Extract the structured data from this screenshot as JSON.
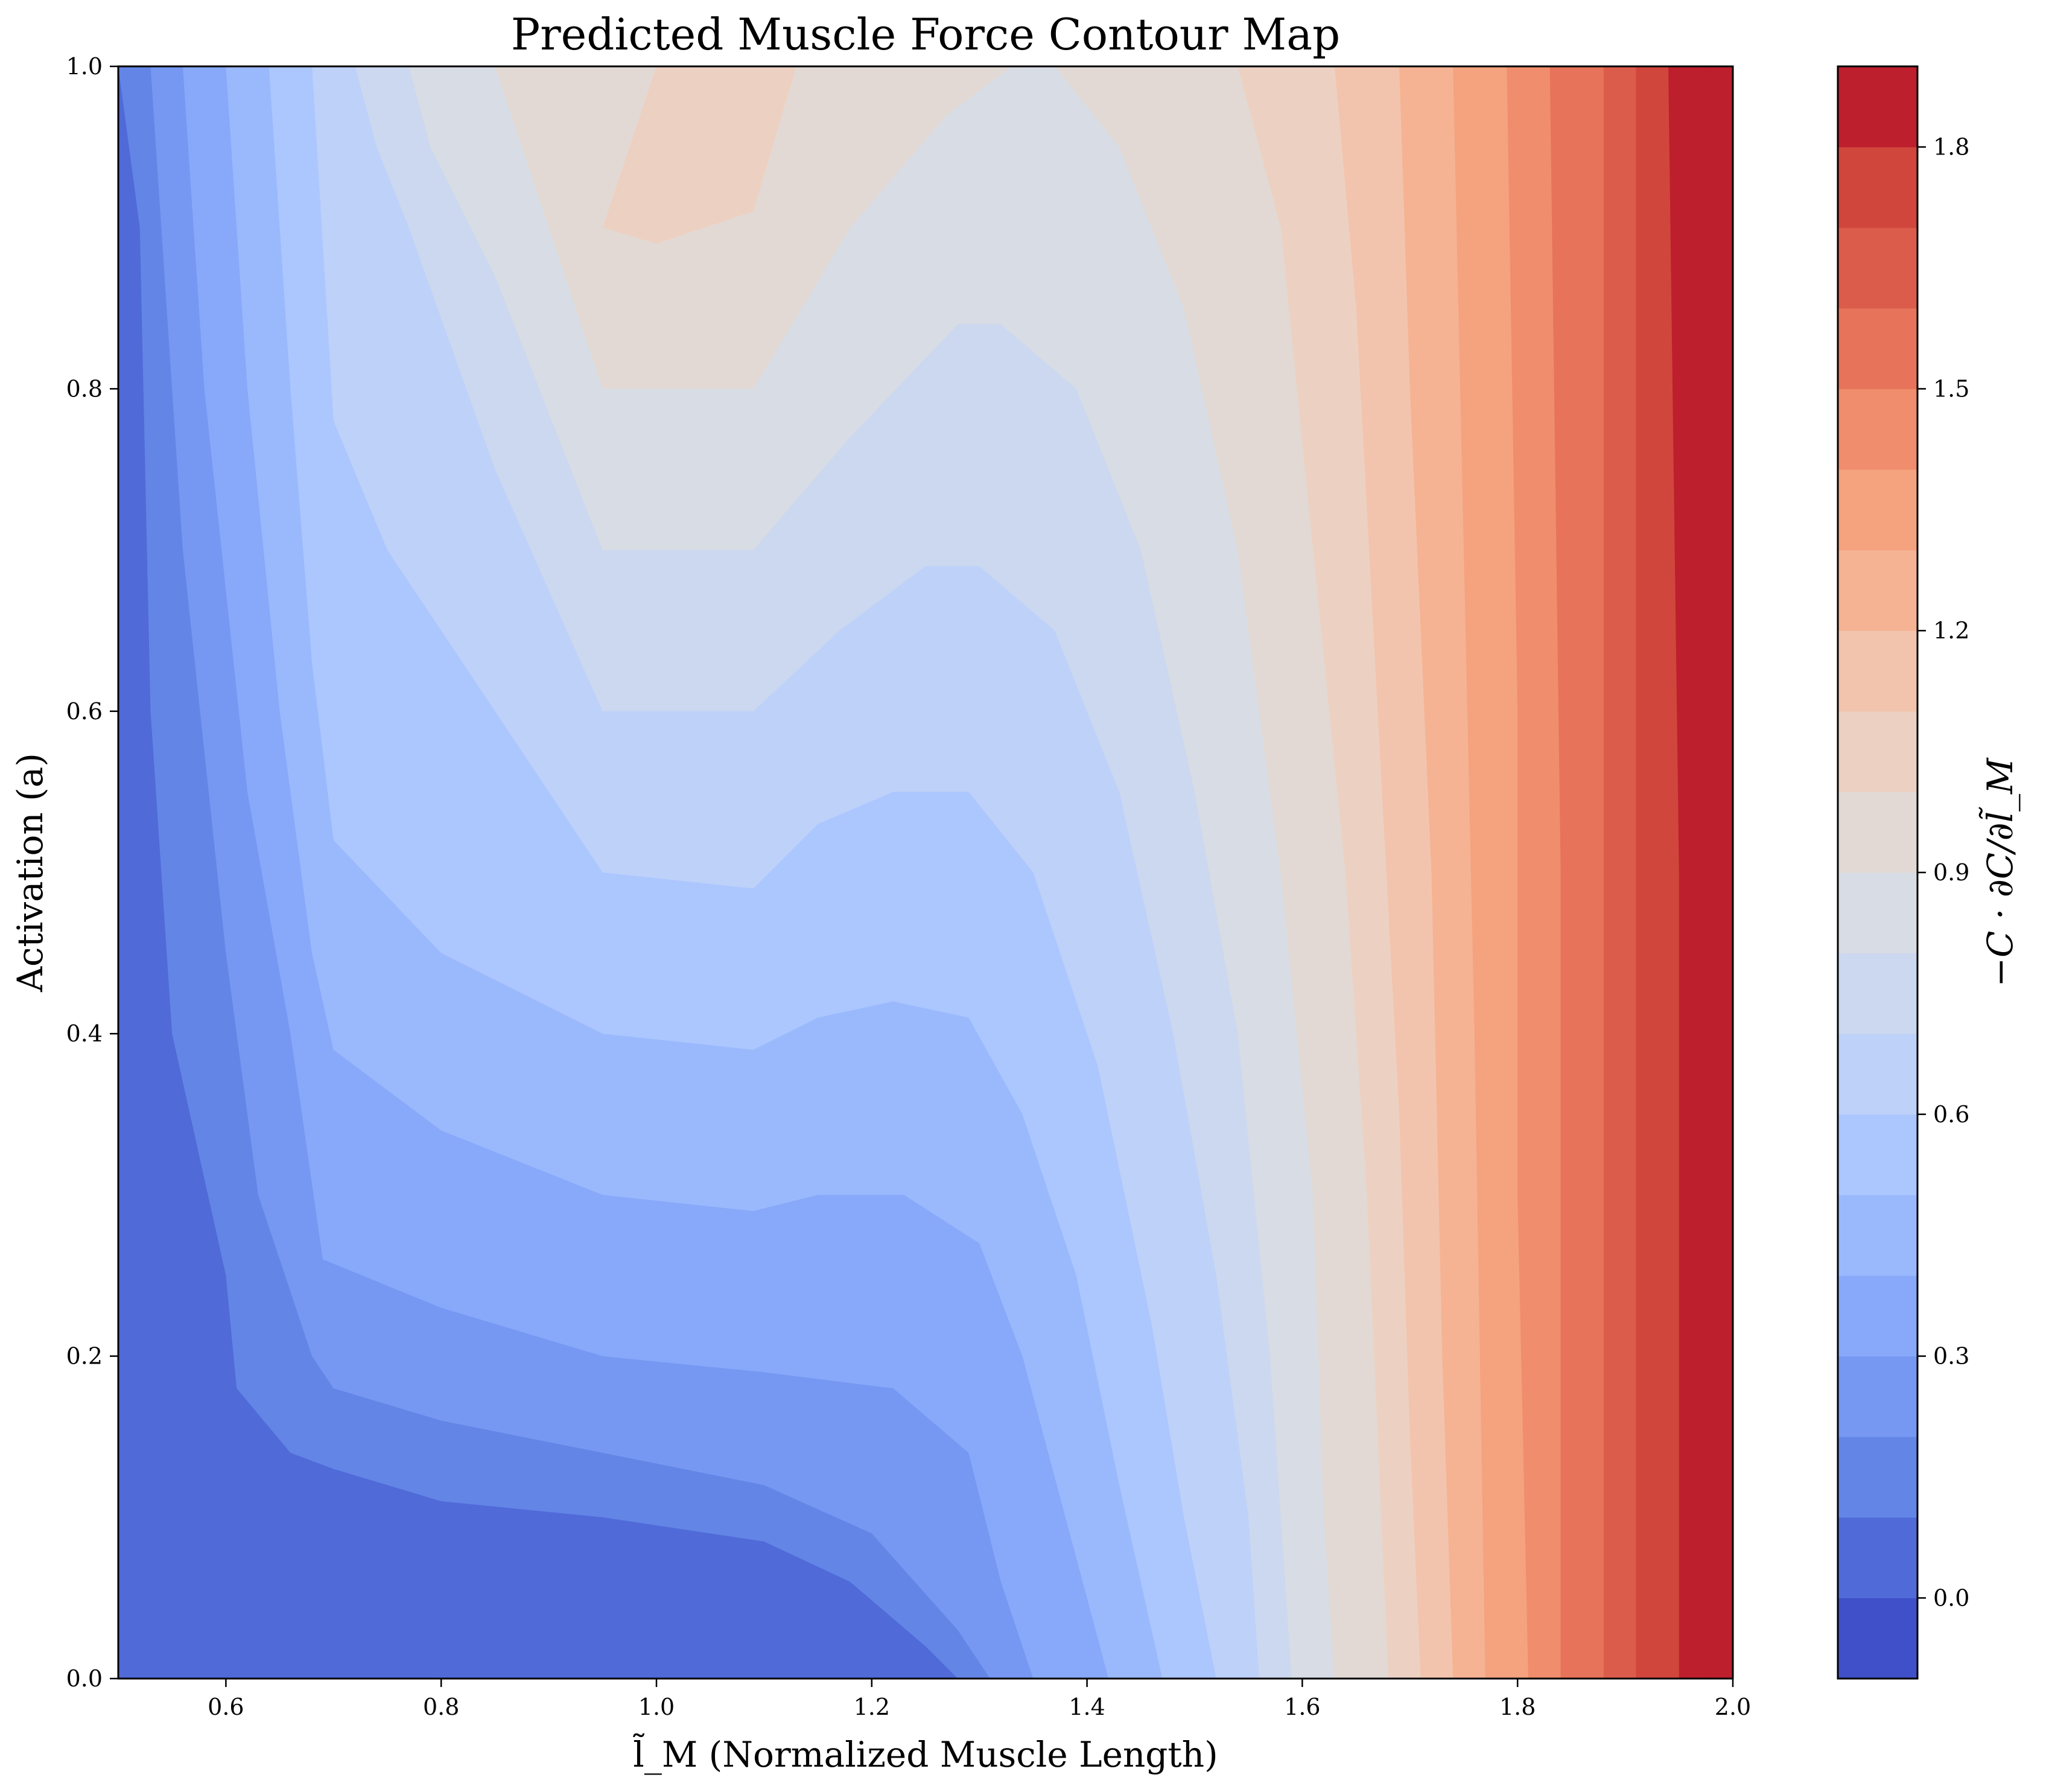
{
  "chart_data": {
    "type": "contour",
    "title": "Predicted Muscle Force Contour Map",
    "xlabel": "l̃_M (Normalized Muscle Length)",
    "ylabel": "Activation (a)",
    "xlim": [
      0.5,
      2.0
    ],
    "ylim": [
      0.0,
      1.0
    ],
    "x_ticks": [
      "0.6",
      "0.8",
      "1.0",
      "1.2",
      "1.4",
      "1.6",
      "1.8",
      "2.0"
    ],
    "y_ticks": [
      "0.0",
      "0.2",
      "0.4",
      "0.6",
      "0.8",
      "1.0"
    ],
    "grid": false,
    "colorbar": {
      "label": "−C · ∂C/∂l̃_M",
      "range": [
        -0.1,
        1.9
      ],
      "ticks": [
        "0.0",
        "0.3",
        "0.6",
        "0.9",
        "1.2",
        "1.5",
        "1.8"
      ],
      "levels": [
        -0.1,
        0.0,
        0.1,
        0.2,
        0.3,
        0.4,
        0.5,
        0.6,
        0.7,
        0.8,
        0.9,
        1.0,
        1.1,
        1.2,
        1.3,
        1.4,
        1.5,
        1.6,
        1.7,
        1.8,
        1.9
      ],
      "colors": [
        "#3f50c8",
        "#506ad8",
        "#6385e6",
        "#7698f2",
        "#88a9fa",
        "#9ab9fd",
        "#acc6fe",
        "#bdd1f9",
        "#cbd8ef",
        "#d8dce4",
        "#e2d9d4",
        "#ecd1c3",
        "#f3c4ad",
        "#f5b394",
        "#f5a27f",
        "#f08d6c",
        "#e6735a",
        "#dc5c4b",
        "#d0463c",
        "#bd1f2d"
      ]
    },
    "contour_lines": [
      {
        "level": 0.0,
        "points": [
          [
            0.5,
            0.003
          ],
          [
            0.55,
            0.003
          ],
          [
            0.6,
            0.0
          ]
        ]
      },
      {
        "level": 0.1,
        "points": [
          [
            0.5,
            1.0
          ],
          [
            0.52,
            0.9
          ],
          [
            0.53,
            0.6
          ],
          [
            0.55,
            0.4
          ],
          [
            0.6,
            0.25
          ],
          [
            0.61,
            0.18
          ],
          [
            0.66,
            0.14
          ],
          [
            0.7,
            0.13
          ],
          [
            0.8,
            0.11
          ],
          [
            0.95,
            0.1
          ],
          [
            1.1,
            0.085
          ],
          [
            1.18,
            0.06
          ],
          [
            1.25,
            0.02
          ],
          [
            1.28,
            0.0
          ]
        ]
      },
      {
        "level": 0.2,
        "points": [
          [
            0.53,
            1.0
          ],
          [
            0.54,
            0.9
          ],
          [
            0.56,
            0.7
          ],
          [
            0.6,
            0.45
          ],
          [
            0.63,
            0.3
          ],
          [
            0.68,
            0.2
          ],
          [
            0.7,
            0.18
          ],
          [
            0.8,
            0.16
          ],
          [
            0.95,
            0.14
          ],
          [
            1.1,
            0.12
          ],
          [
            1.2,
            0.09
          ],
          [
            1.28,
            0.03
          ],
          [
            1.31,
            0.0
          ]
        ]
      },
      {
        "level": 0.3,
        "points": [
          [
            0.56,
            1.0
          ],
          [
            0.58,
            0.8
          ],
          [
            0.62,
            0.55
          ],
          [
            0.66,
            0.4
          ],
          [
            0.69,
            0.26
          ],
          [
            0.8,
            0.23
          ],
          [
            0.95,
            0.2
          ],
          [
            1.1,
            0.19
          ],
          [
            1.22,
            0.18
          ],
          [
            1.29,
            0.14
          ],
          [
            1.32,
            0.06
          ],
          [
            1.35,
            0.0
          ]
        ]
      },
      {
        "level": 0.4,
        "points": [
          [
            0.6,
            1.0
          ],
          [
            0.62,
            0.8
          ],
          [
            0.65,
            0.6
          ],
          [
            0.68,
            0.45
          ],
          [
            0.7,
            0.39
          ],
          [
            0.8,
            0.34
          ],
          [
            0.95,
            0.3
          ],
          [
            1.09,
            0.29
          ],
          [
            1.15,
            0.3
          ],
          [
            1.23,
            0.3
          ],
          [
            1.3,
            0.27
          ],
          [
            1.34,
            0.2
          ],
          [
            1.38,
            0.1
          ],
          [
            1.42,
            0.0
          ]
        ]
      },
      {
        "level": 0.5,
        "points": [
          [
            0.64,
            1.0
          ],
          [
            0.66,
            0.8
          ],
          [
            0.68,
            0.63
          ],
          [
            0.7,
            0.52
          ],
          [
            0.8,
            0.45
          ],
          [
            0.95,
            0.4
          ],
          [
            1.09,
            0.39
          ],
          [
            1.15,
            0.41
          ],
          [
            1.22,
            0.42
          ],
          [
            1.29,
            0.41
          ],
          [
            1.34,
            0.35
          ],
          [
            1.39,
            0.25
          ],
          [
            1.43,
            0.12
          ],
          [
            1.47,
            0.0
          ]
        ]
      },
      {
        "level": 0.6,
        "points": [
          [
            0.68,
            1.0
          ],
          [
            0.7,
            0.78
          ],
          [
            0.75,
            0.7
          ],
          [
            0.85,
            0.6
          ],
          [
            0.95,
            0.5
          ],
          [
            1.09,
            0.49
          ],
          [
            1.15,
            0.53
          ],
          [
            1.22,
            0.55
          ],
          [
            1.29,
            0.55
          ],
          [
            1.35,
            0.5
          ],
          [
            1.41,
            0.38
          ],
          [
            1.46,
            0.22
          ],
          [
            1.49,
            0.1
          ],
          [
            1.52,
            0.0
          ]
        ]
      },
      {
        "level": 0.7,
        "points": [
          [
            0.72,
            1.0
          ],
          [
            0.74,
            0.95
          ],
          [
            0.77,
            0.9
          ],
          [
            0.85,
            0.75
          ],
          [
            0.95,
            0.6
          ],
          [
            1.09,
            0.6
          ],
          [
            1.17,
            0.65
          ],
          [
            1.25,
            0.69
          ],
          [
            1.3,
            0.69
          ],
          [
            1.37,
            0.65
          ],
          [
            1.43,
            0.55
          ],
          [
            1.48,
            0.4
          ],
          [
            1.52,
            0.25
          ],
          [
            1.55,
            0.1
          ],
          [
            1.56,
            0.0
          ]
        ]
      },
      {
        "level": 0.8,
        "points": [
          [
            0.77,
            1.0
          ],
          [
            0.79,
            0.95
          ],
          [
            0.85,
            0.87
          ],
          [
            0.95,
            0.7
          ],
          [
            1.09,
            0.7
          ],
          [
            1.18,
            0.77
          ],
          [
            1.28,
            0.84
          ],
          [
            1.32,
            0.84
          ],
          [
            1.39,
            0.8
          ],
          [
            1.45,
            0.7
          ],
          [
            1.5,
            0.55
          ],
          [
            1.54,
            0.4
          ],
          [
            1.57,
            0.2
          ],
          [
            1.59,
            0.0
          ]
        ]
      },
      {
        "level": 0.9,
        "points": [
          [
            0.85,
            1.0
          ],
          [
            0.95,
            0.8
          ],
          [
            1.09,
            0.8
          ],
          [
            1.18,
            0.9
          ],
          [
            1.27,
            0.97
          ],
          [
            1.33,
            1.0
          ],
          [
            1.37,
            1.0
          ],
          [
            1.43,
            0.95
          ],
          [
            1.49,
            0.85
          ],
          [
            1.54,
            0.7
          ],
          [
            1.58,
            0.5
          ],
          [
            1.61,
            0.3
          ],
          [
            1.62,
            0.1
          ],
          [
            1.63,
            0.0
          ]
        ]
      },
      {
        "level": 1.0,
        "points": [
          [
            1.0,
            1.0
          ],
          [
            0.95,
            0.9
          ],
          [
            1.0,
            0.89
          ],
          [
            1.09,
            0.91
          ],
          [
            1.13,
            1.0
          ]
        ]
      },
      {
        "level": 1.0,
        "points": [
          [
            1.54,
            1.0
          ],
          [
            1.58,
            0.9
          ],
          [
            1.61,
            0.7
          ],
          [
            1.64,
            0.5
          ],
          [
            1.66,
            0.3
          ],
          [
            1.67,
            0.15
          ],
          [
            1.68,
            0.0
          ]
        ]
      },
      {
        "level": 1.1,
        "points": [
          [
            1.63,
            1.0
          ],
          [
            1.65,
            0.85
          ],
          [
            1.67,
            0.6
          ],
          [
            1.69,
            0.35
          ],
          [
            1.7,
            0.15
          ],
          [
            1.71,
            0.0
          ]
        ]
      },
      {
        "level": 1.2,
        "points": [
          [
            1.69,
            1.0
          ],
          [
            1.7,
            0.8
          ],
          [
            1.72,
            0.5
          ],
          [
            1.73,
            0.2
          ],
          [
            1.74,
            0.0
          ]
        ]
      },
      {
        "level": 1.3,
        "points": [
          [
            1.74,
            1.0
          ],
          [
            1.75,
            0.7
          ],
          [
            1.76,
            0.4
          ],
          [
            1.77,
            0.0
          ]
        ]
      },
      {
        "level": 1.4,
        "points": [
          [
            1.79,
            1.0
          ],
          [
            1.8,
            0.6
          ],
          [
            1.8,
            0.3
          ],
          [
            1.81,
            0.0
          ]
        ]
      },
      {
        "level": 1.5,
        "points": [
          [
            1.83,
            1.0
          ],
          [
            1.84,
            0.5
          ],
          [
            1.84,
            0.0
          ]
        ]
      },
      {
        "level": 1.6,
        "points": [
          [
            1.88,
            1.0
          ],
          [
            1.88,
            0.5
          ],
          [
            1.88,
            0.0
          ]
        ]
      },
      {
        "level": 1.7,
        "points": [
          [
            1.91,
            1.0
          ],
          [
            1.91,
            0.5
          ],
          [
            1.91,
            0.0
          ]
        ]
      },
      {
        "level": 1.8,
        "points": [
          [
            1.94,
            1.0
          ],
          [
            1.95,
            0.5
          ],
          [
            1.95,
            0.0
          ]
        ]
      },
      {
        "level": 1.9,
        "points": [
          [
            1.98,
            1.0
          ],
          [
            1.98,
            0.5
          ],
          [
            1.98,
            0.0
          ]
        ]
      }
    ]
  }
}
